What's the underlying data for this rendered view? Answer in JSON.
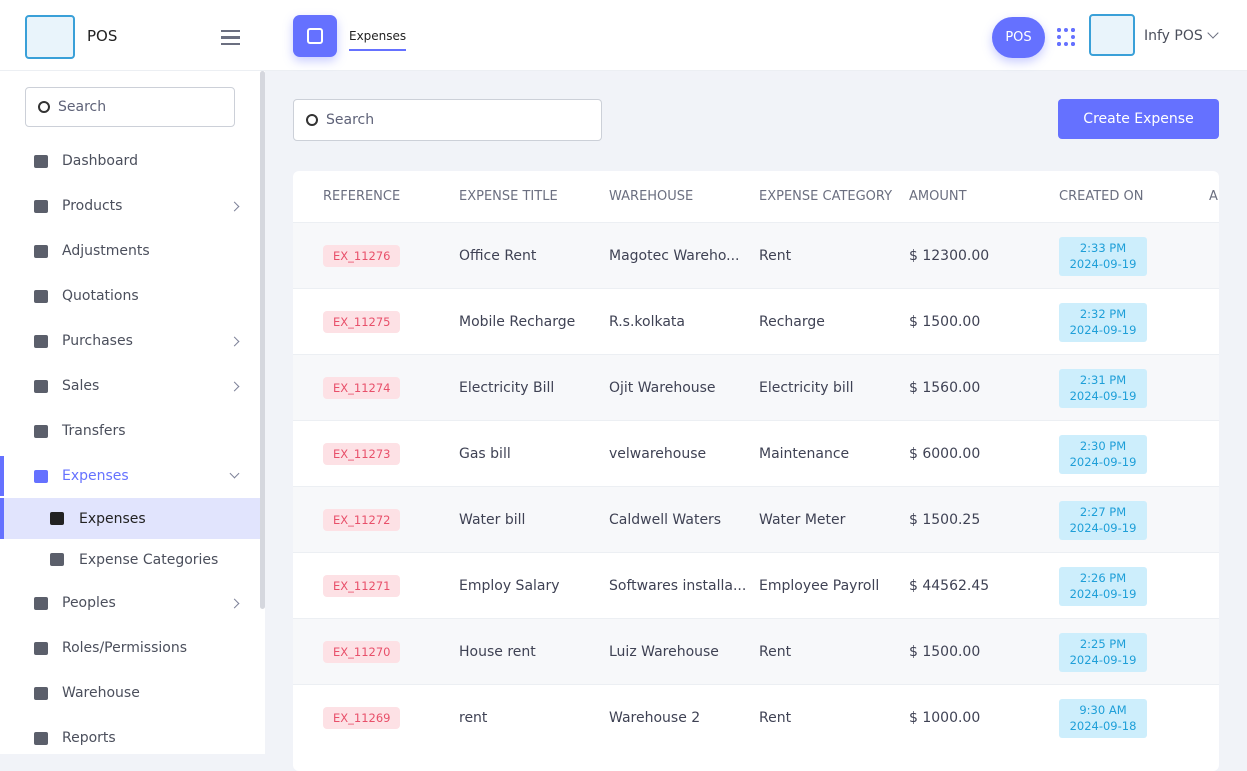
{
  "brand": "POS",
  "header": {
    "tab": "Expenses",
    "pos_button": "POS",
    "user": "Infy POS"
  },
  "sidebar": {
    "search_placeholder": "Search",
    "items": [
      {
        "label": "Dashboard"
      },
      {
        "label": "Products"
      },
      {
        "label": "Adjustments"
      },
      {
        "label": "Quotations"
      },
      {
        "label": "Purchases"
      },
      {
        "label": "Sales"
      },
      {
        "label": "Transfers"
      },
      {
        "label": "Expenses"
      },
      {
        "label": "Expenses"
      },
      {
        "label": "Expense Categories"
      },
      {
        "label": "Peoples"
      },
      {
        "label": "Roles/Permissions"
      },
      {
        "label": "Warehouse"
      },
      {
        "label": "Reports"
      }
    ]
  },
  "toolbar": {
    "search_placeholder": "Search",
    "create_button": "Create Expense"
  },
  "table": {
    "columns": [
      "REFERENCE",
      "EXPENSE TITLE",
      "WAREHOUSE",
      "EXPENSE CATEGORY",
      "AMOUNT",
      "CREATED ON",
      "A"
    ],
    "rows": [
      [
        "EX_11276",
        "Office Rent",
        "Magotec Wareho...",
        "Rent",
        "$ 12300.00",
        "2:33 PM",
        "2024-09-19"
      ],
      [
        "EX_11275",
        "Mobile Recharge",
        "R.s.kolkata",
        "Recharge",
        "$ 1500.00",
        "2:32 PM",
        "2024-09-19"
      ],
      [
        "EX_11274",
        "Electricity Bill",
        "Ojit Warehouse",
        "Electricity bill",
        "$ 1560.00",
        "2:31 PM",
        "2024-09-19"
      ],
      [
        "EX_11273",
        "Gas bill",
        "velwarehouse",
        "Maintenance",
        "$ 6000.00",
        "2:30 PM",
        "2024-09-19"
      ],
      [
        "EX_11272",
        "Water bill",
        "Caldwell Waters",
        "Water Meter",
        "$ 1500.25",
        "2:27 PM",
        "2024-09-19"
      ],
      [
        "EX_11271",
        "Employ Salary",
        "Softwares installa...",
        "Employee Payroll",
        "$ 44562.45",
        "2:26 PM",
        "2024-09-19"
      ],
      [
        "EX_11270",
        "House rent",
        "Luiz Warehouse",
        "Rent",
        "$ 1500.00",
        "2:25 PM",
        "2024-09-19"
      ],
      [
        "EX_11269",
        "rent",
        "Warehouse 2",
        "Rent",
        "$ 1000.00",
        "9:30 AM",
        "2024-09-18"
      ]
    ]
  }
}
